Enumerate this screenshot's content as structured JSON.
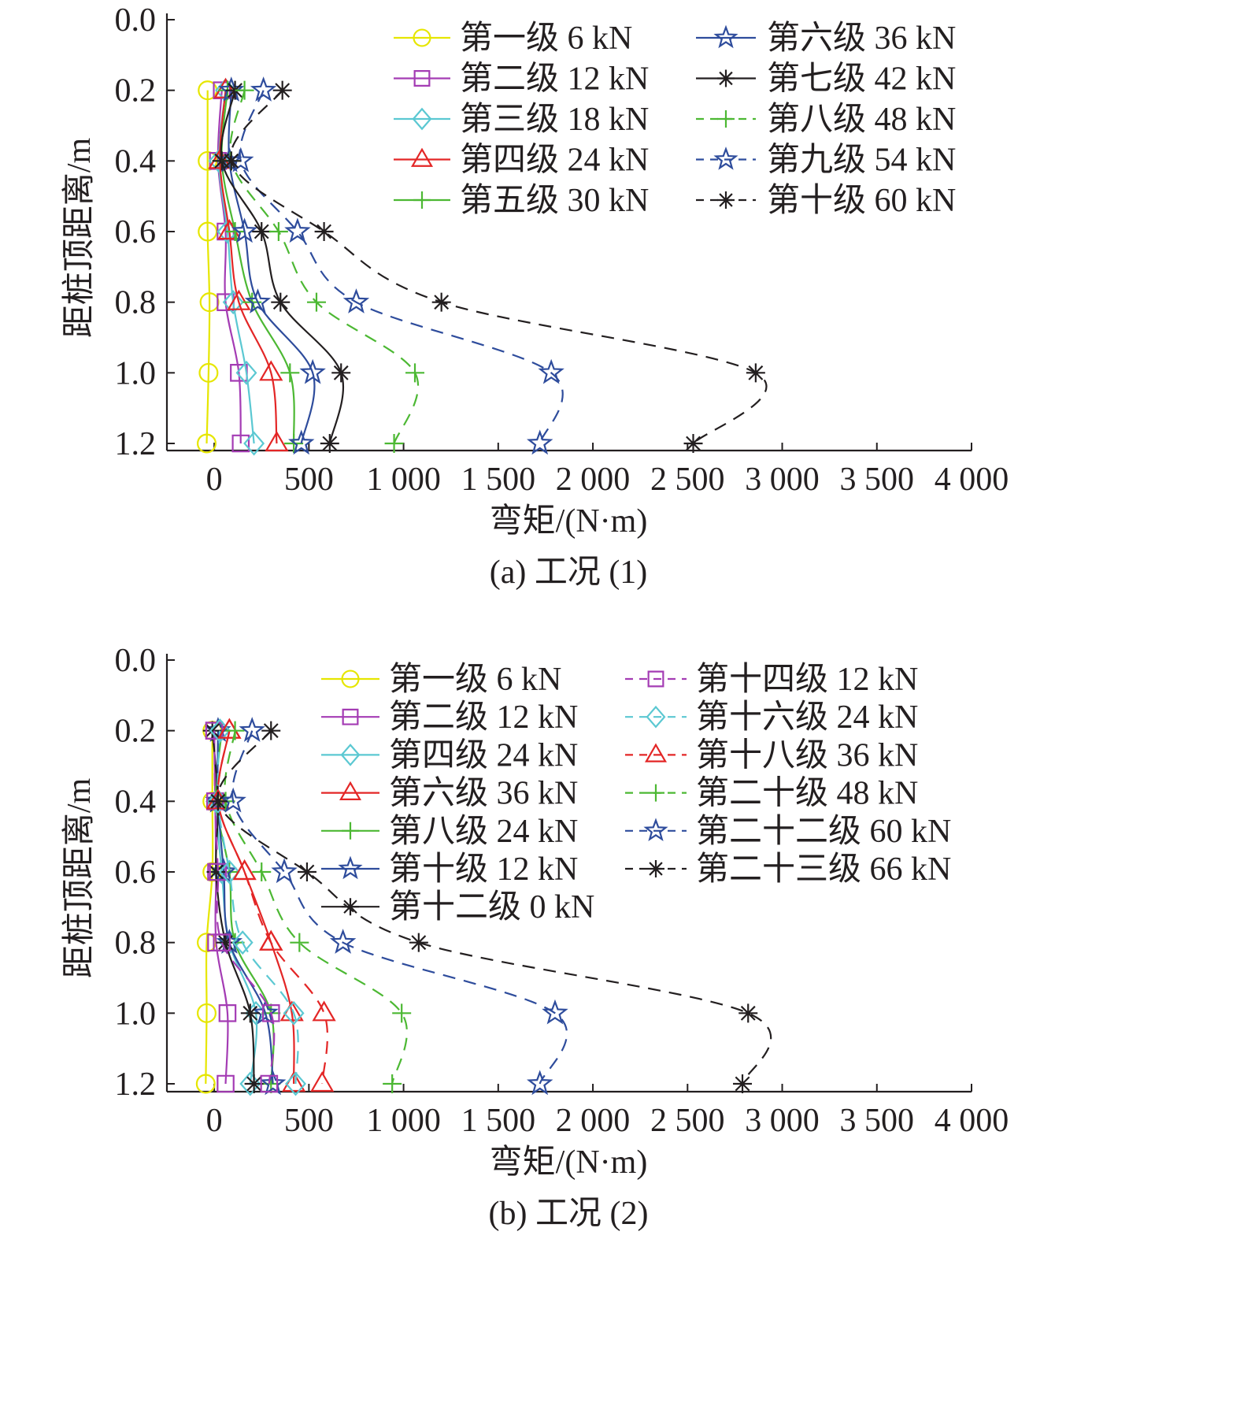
{
  "chart_data": [
    {
      "type": "line",
      "caption": "(a) 工况 (1)",
      "xlabel": "弯矩/(N·m)",
      "ylabel": "距桩顶距离/m",
      "xlim": [
        -250,
        4000
      ],
      "ylim": [
        0,
        1.2
      ],
      "y_inverted": true,
      "x_ticks": [
        0,
        500,
        1000,
        1500,
        2000,
        2500,
        3000,
        3500,
        4000
      ],
      "x_tick_labels": [
        "0",
        "500",
        "1 000",
        "1 500",
        "2 000",
        "2 500",
        "3 000",
        "3 500",
        "4 000"
      ],
      "y_ticks": [
        0,
        0.2,
        0.4,
        0.6,
        0.8,
        1.0,
        1.2
      ],
      "y_tick_labels": [
        "0.0",
        "0.2",
        "0.4",
        "0.6",
        "0.8",
        "1.0",
        "1.2"
      ],
      "grid": false,
      "legend_columns": 2,
      "legend_placement": "top-right",
      "series": [
        {
          "name": "第一级 6 kN",
          "color": "#e6e600",
          "marker": "circle",
          "dash": false,
          "depth": [
            0.2,
            0.4,
            0.6,
            0.8,
            1.0,
            1.2
          ],
          "moment": [
            -35,
            -35,
            -35,
            -25,
            -30,
            -40
          ]
        },
        {
          "name": "第二级 12 kN",
          "color": "#a43cb4",
          "marker": "square",
          "dash": false,
          "depth": [
            0.2,
            0.4,
            0.6,
            0.8,
            1.0,
            1.2
          ],
          "moment": [
            40,
            20,
            60,
            60,
            130,
            140
          ]
        },
        {
          "name": "第三级 18 kN",
          "color": "#5bc8d2",
          "marker": "diamond",
          "dash": false,
          "depth": [
            0.2,
            0.4,
            0.6,
            0.8,
            1.0,
            1.2
          ],
          "moment": [
            60,
            25,
            70,
            100,
            170,
            210
          ]
        },
        {
          "name": "第四级 24 kN",
          "color": "#e32626",
          "marker": "triangle",
          "dash": false,
          "depth": [
            0.2,
            0.4,
            0.6,
            0.8,
            1.0,
            1.2
          ],
          "moment": [
            60,
            30,
            80,
            130,
            300,
            330
          ]
        },
        {
          "name": "第五级 30 kN",
          "color": "#4cb833",
          "marker": "plus",
          "dash": false,
          "depth": [
            0.2,
            0.4,
            0.6,
            0.8,
            1.0,
            1.2
          ],
          "moment": [
            70,
            40,
            110,
            200,
            400,
            420
          ]
        },
        {
          "name": "第六级 36 kN",
          "color": "#2e4c9c",
          "marker": "star",
          "dash": false,
          "depth": [
            0.2,
            0.4,
            0.6,
            0.8,
            1.0,
            1.2
          ],
          "moment": [
            90,
            80,
            160,
            230,
            520,
            460
          ]
        },
        {
          "name": "第七级 42 kN",
          "color": "#231f20",
          "marker": "asterisk",
          "dash": false,
          "depth": [
            0.2,
            0.4,
            0.6,
            0.8,
            1.0,
            1.2
          ],
          "moment": [
            110,
            40,
            250,
            350,
            670,
            610
          ]
        },
        {
          "name": "第八级 48 kN",
          "color": "#4cb833",
          "marker": "plus",
          "dash": true,
          "depth": [
            0.2,
            0.4,
            0.6,
            0.8,
            1.0,
            1.2
          ],
          "moment": [
            160,
            90,
            340,
            540,
            1060,
            950
          ]
        },
        {
          "name": "第九级 54 kN",
          "color": "#2e4c9c",
          "marker": "star",
          "dash": true,
          "depth": [
            0.2,
            0.4,
            0.6,
            0.8,
            1.0,
            1.2
          ],
          "moment": [
            260,
            140,
            440,
            750,
            1780,
            1720
          ]
        },
        {
          "name": "第十级 60 kN",
          "color": "#231f20",
          "marker": "asterisk",
          "dash": true,
          "depth": [
            0.2,
            0.4,
            0.6,
            0.8,
            1.0,
            1.2
          ],
          "moment": [
            360,
            90,
            580,
            1200,
            2860,
            2530
          ]
        }
      ]
    },
    {
      "type": "line",
      "caption": "(b) 工况 (2)",
      "xlabel": "弯矩/(N·m)",
      "ylabel": "距桩顶距离/m",
      "xlim": [
        -250,
        4000
      ],
      "ylim": [
        0,
        1.2
      ],
      "y_inverted": true,
      "x_ticks": [
        0,
        500,
        1000,
        1500,
        2000,
        2500,
        3000,
        3500,
        4000
      ],
      "x_tick_labels": [
        "0",
        "500",
        "1 000",
        "1 500",
        "2 000",
        "2 500",
        "3 000",
        "3 500",
        "4 000"
      ],
      "y_ticks": [
        0,
        0.2,
        0.4,
        0.6,
        0.8,
        1.0,
        1.2
      ],
      "y_tick_labels": [
        "0.0",
        "0.2",
        "0.4",
        "0.6",
        "0.8",
        "1.0",
        "1.2"
      ],
      "grid": false,
      "legend_columns": 2,
      "legend_placement": "top-right",
      "series": [
        {
          "name": "第一级 6 kN",
          "color": "#e6e600",
          "marker": "circle",
          "dash": false,
          "depth": [
            0.2,
            0.4,
            0.6,
            0.8,
            1.0,
            1.2
          ],
          "moment": [
            -10,
            -10,
            -10,
            -40,
            -40,
            -45
          ]
        },
        {
          "name": "第二级 12 kN",
          "color": "#a43cb4",
          "marker": "square",
          "dash": false,
          "depth": [
            0.2,
            0.4,
            0.6,
            0.8,
            1.0,
            1.2
          ],
          "moment": [
            0,
            5,
            10,
            10,
            70,
            60
          ]
        },
        {
          "name": "第四级 24 kN",
          "color": "#5bc8d2",
          "marker": "diamond",
          "dash": false,
          "depth": [
            0.2,
            0.4,
            0.6,
            0.8,
            1.0,
            1.2
          ],
          "moment": [
            30,
            10,
            40,
            80,
            220,
            190
          ]
        },
        {
          "name": "第六级 36 kN",
          "color": "#e32626",
          "marker": "triangle",
          "dash": false,
          "depth": [
            0.2,
            0.4,
            0.6,
            0.8,
            1.0,
            1.2
          ],
          "moment": [
            80,
            20,
            160,
            300,
            410,
            420
          ]
        },
        {
          "name": "第八级 24 kN",
          "color": "#4cb833",
          "marker": "plus",
          "dash": false,
          "depth": [
            0.2,
            0.4,
            0.6,
            0.8,
            1.0,
            1.2
          ],
          "moment": [
            40,
            10,
            80,
            110,
            300,
            300
          ]
        },
        {
          "name": "第十级 12 kN",
          "color": "#2e4c9c",
          "marker": "star",
          "dash": false,
          "depth": [
            0.2,
            0.4,
            0.6,
            0.8,
            1.0,
            1.2
          ],
          "moment": [
            20,
            20,
            50,
            80,
            270,
            310
          ]
        },
        {
          "name": "第十二级 0 kN",
          "color": "#231f20",
          "marker": "asterisk",
          "dash": false,
          "depth": [
            0.2,
            0.4,
            0.6,
            0.8,
            1.0,
            1.2
          ],
          "moment": [
            -10,
            20,
            10,
            60,
            190,
            210
          ]
        },
        {
          "name": "第十四级 12 kN",
          "color": "#a43cb4",
          "marker": "square",
          "dash": true,
          "depth": [
            0.2,
            0.4,
            0.6,
            0.8,
            1.0,
            1.2
          ],
          "moment": [
            0,
            5,
            20,
            40,
            300,
            290
          ]
        },
        {
          "name": "第十六级 24 kN",
          "color": "#5bc8d2",
          "marker": "diamond",
          "dash": true,
          "depth": [
            0.2,
            0.4,
            0.6,
            0.8,
            1.0,
            1.2
          ],
          "moment": [
            30,
            20,
            80,
            150,
            420,
            430
          ]
        },
        {
          "name": "第十八级 36 kN",
          "color": "#e32626",
          "marker": "triangle",
          "dash": true,
          "depth": [
            0.2,
            0.4,
            0.6,
            0.8,
            1.0,
            1.2
          ],
          "moment": [
            80,
            20,
            160,
            300,
            580,
            570
          ]
        },
        {
          "name": "第二十级 48 kN",
          "color": "#4cb833",
          "marker": "plus",
          "dash": true,
          "depth": [
            0.2,
            0.4,
            0.6,
            0.8,
            1.0,
            1.2
          ],
          "moment": [
            110,
            60,
            250,
            450,
            990,
            940
          ]
        },
        {
          "name": "第二十二级 60 kN",
          "color": "#2e4c9c",
          "marker": "star",
          "dash": true,
          "depth": [
            0.2,
            0.4,
            0.6,
            0.8,
            1.0,
            1.2
          ],
          "moment": [
            200,
            100,
            370,
            680,
            1800,
            1720
          ]
        },
        {
          "name": "第二十三级 66 kN",
          "color": "#231f20",
          "marker": "asterisk",
          "dash": true,
          "depth": [
            0.2,
            0.4,
            0.6,
            0.8,
            1.0,
            1.2
          ],
          "moment": [
            300,
            20,
            490,
            1080,
            2820,
            2790
          ]
        }
      ]
    }
  ]
}
